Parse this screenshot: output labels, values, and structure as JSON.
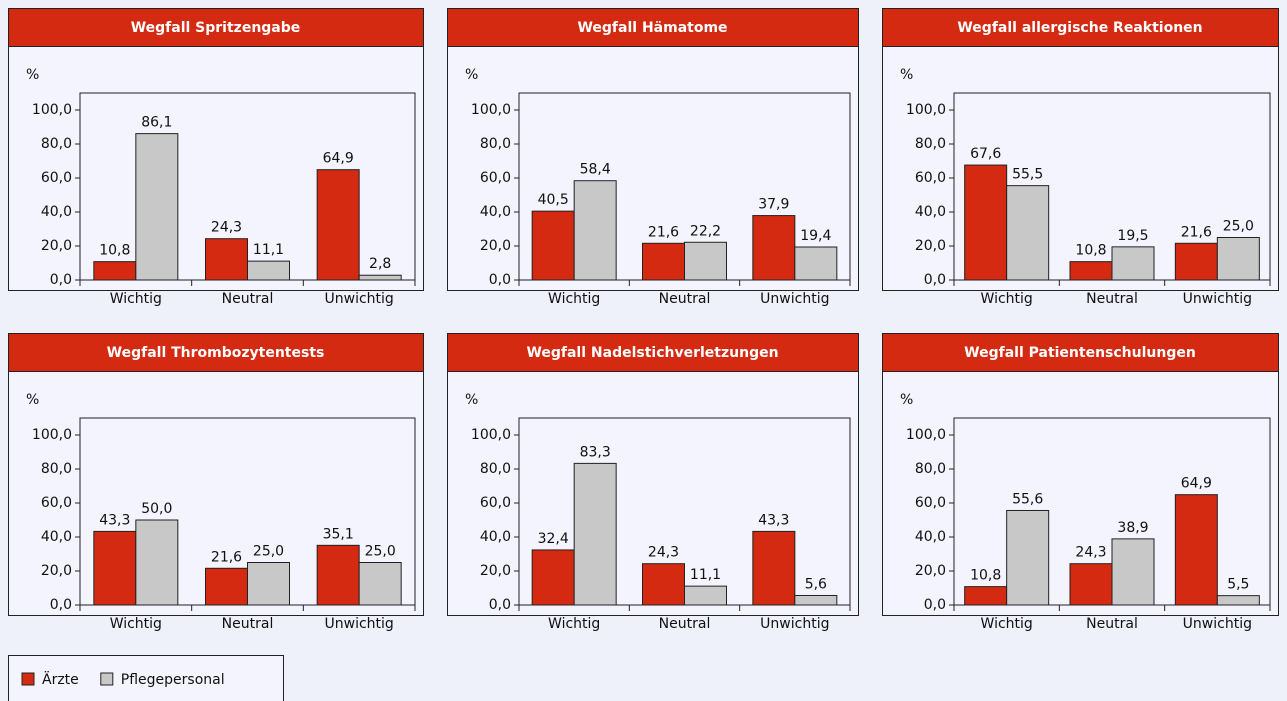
{
  "legend": [
    {
      "name": "Ärzte",
      "color": "#d42a12"
    },
    {
      "name": "Pflegepersonal",
      "color": "#c8c8c8"
    }
  ],
  "chart_data": [
    {
      "type": "bar",
      "title": "Wegfall Spritzengabe",
      "ylabel": "%",
      "categories": [
        "Wichtig",
        "Neutral",
        "Unwichtig"
      ],
      "series": [
        {
          "values": [
            10.8,
            24.3,
            64.9
          ],
          "value_labels": [
            "10,8",
            "24,3",
            "64,9"
          ]
        },
        {
          "values": [
            86.1,
            11.1,
            2.8
          ],
          "value_labels": [
            "86,1",
            "11,1",
            "2,8"
          ]
        }
      ],
      "ylim": [
        0,
        110
      ],
      "yticks": [
        {
          "value": 0,
          "label": "0,0"
        },
        {
          "value": 20,
          "label": "20,0"
        },
        {
          "value": 40,
          "label": "40,0"
        },
        {
          "value": 60,
          "label": "60,0"
        },
        {
          "value": 80,
          "label": "80,0"
        },
        {
          "value": 100,
          "label": "100,0"
        }
      ]
    },
    {
      "type": "bar",
      "title": "Wegfall Hämatome",
      "ylabel": "%",
      "categories": [
        "Wichtig",
        "Neutral",
        "Unwichtig"
      ],
      "series": [
        {
          "values": [
            40.5,
            21.6,
            37.9
          ],
          "value_labels": [
            "40,5",
            "21,6",
            "37,9"
          ]
        },
        {
          "values": [
            58.4,
            22.2,
            19.4
          ],
          "value_labels": [
            "58,4",
            "22,2",
            "19,4"
          ]
        }
      ],
      "ylim": [
        0,
        110
      ],
      "yticks": [
        {
          "value": 0,
          "label": "0,0"
        },
        {
          "value": 20,
          "label": "20,0"
        },
        {
          "value": 40,
          "label": "40,0"
        },
        {
          "value": 60,
          "label": "60,0"
        },
        {
          "value": 80,
          "label": "80,0"
        },
        {
          "value": 100,
          "label": "100,0"
        }
      ]
    },
    {
      "type": "bar",
      "title": "Wegfall allergische Reaktionen",
      "ylabel": "%",
      "categories": [
        "Wichtig",
        "Neutral",
        "Unwichtig"
      ],
      "series": [
        {
          "values": [
            67.6,
            10.8,
            21.6
          ],
          "value_labels": [
            "67,6",
            "10,8",
            "21,6"
          ]
        },
        {
          "values": [
            55.5,
            19.5,
            25.0
          ],
          "value_labels": [
            "55,5",
            "19,5",
            "25,0"
          ]
        }
      ],
      "ylim": [
        0,
        110
      ],
      "yticks": [
        {
          "value": 0,
          "label": "0,0"
        },
        {
          "value": 20,
          "label": "20,0"
        },
        {
          "value": 40,
          "label": "40,0"
        },
        {
          "value": 60,
          "label": "60,0"
        },
        {
          "value": 80,
          "label": "80,0"
        },
        {
          "value": 100,
          "label": "100,0"
        }
      ]
    },
    {
      "type": "bar",
      "title": "Wegfall Thrombozytentests",
      "ylabel": "%",
      "categories": [
        "Wichtig",
        "Neutral",
        "Unwichtig"
      ],
      "series": [
        {
          "values": [
            43.3,
            21.6,
            35.1
          ],
          "value_labels": [
            "43,3",
            "21,6",
            "35,1"
          ]
        },
        {
          "values": [
            50.0,
            25.0,
            25.0
          ],
          "value_labels": [
            "50,0",
            "25,0",
            "25,0"
          ]
        }
      ],
      "ylim": [
        0,
        110
      ],
      "yticks": [
        {
          "value": 0,
          "label": "0,0"
        },
        {
          "value": 20,
          "label": "20,0"
        },
        {
          "value": 40,
          "label": "40,0"
        },
        {
          "value": 60,
          "label": "60,0"
        },
        {
          "value": 80,
          "label": "80,0"
        },
        {
          "value": 100,
          "label": "100,0"
        }
      ]
    },
    {
      "type": "bar",
      "title": "Wegfall Nadelstichverletzungen",
      "ylabel": "%",
      "categories": [
        "Wichtig",
        "Neutral",
        "Unwichtig"
      ],
      "series": [
        {
          "values": [
            32.4,
            24.3,
            43.3
          ],
          "value_labels": [
            "32,4",
            "24,3",
            "43,3"
          ]
        },
        {
          "values": [
            83.3,
            11.1,
            5.6
          ],
          "value_labels": [
            "83,3",
            "11,1",
            "5,6"
          ]
        }
      ],
      "ylim": [
        0,
        110
      ],
      "yticks": [
        {
          "value": 0,
          "label": "0,0"
        },
        {
          "value": 20,
          "label": "20,0"
        },
        {
          "value": 40,
          "label": "40,0"
        },
        {
          "value": 60,
          "label": "60,0"
        },
        {
          "value": 80,
          "label": "80,0"
        },
        {
          "value": 100,
          "label": "100,0"
        }
      ]
    },
    {
      "type": "bar",
      "title": "Wegfall Patientenschulungen",
      "ylabel": "%",
      "categories": [
        "Wichtig",
        "Neutral",
        "Unwichtig"
      ],
      "series": [
        {
          "values": [
            10.8,
            24.3,
            64.9
          ],
          "value_labels": [
            "10,8",
            "24,3",
            "64,9"
          ]
        },
        {
          "values": [
            55.6,
            38.9,
            5.5
          ],
          "value_labels": [
            "55,6",
            "38,9",
            "5,5"
          ]
        }
      ],
      "ylim": [
        0,
        110
      ],
      "yticks": [
        {
          "value": 0,
          "label": "0,0"
        },
        {
          "value": 20,
          "label": "20,0"
        },
        {
          "value": 40,
          "label": "40,0"
        },
        {
          "value": 60,
          "label": "60,0"
        },
        {
          "value": 80,
          "label": "80,0"
        },
        {
          "value": 100,
          "label": "100,0"
        }
      ]
    }
  ]
}
